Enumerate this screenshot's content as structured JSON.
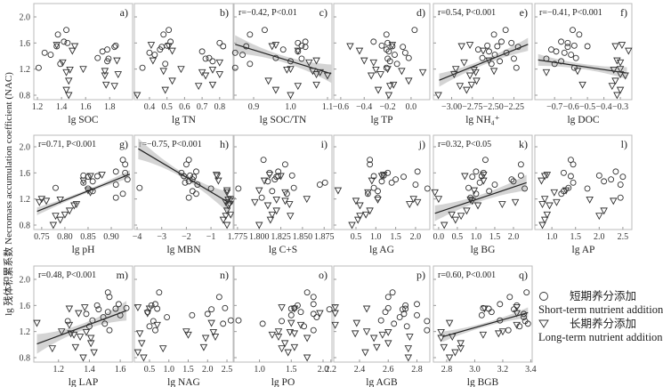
{
  "chart_data": {
    "type": "scatter",
    "ylabel": "lg 残体积累系数 Necromass accumulation coefficient (NAC)",
    "yticks": [
      "2.0",
      "1.6",
      "1.2",
      "0.8"
    ],
    "ylim": [
      0.73,
      2.2
    ],
    "legend": {
      "placement": "right of bottom row",
      "short_cn": "短期养分添加",
      "short_en": "Short-term nutrient addition",
      "long_cn": "长期养分添加",
      "long_en": "Long-term nutrient addition"
    },
    "series_y": {
      "short": [
        1.8,
        1.73,
        1.62,
        1.6,
        1.56,
        1.55,
        1.54,
        1.5,
        1.47,
        1.45,
        1.42,
        1.37,
        1.36,
        1.32,
        1.28,
        1.22
      ],
      "long": [
        1.57,
        1.55,
        1.48,
        1.33,
        1.3,
        1.2,
        1.19,
        1.17,
        1.15,
        1.12,
        1.1,
        1.02,
        0.96,
        0.94,
        0.88,
        0.8
      ]
    },
    "panels": [
      {
        "letter": "a)",
        "xlabel": "lg SOC",
        "xlim": [
          1.17,
          1.99
        ],
        "xticks": [
          "1.2",
          "1.4",
          "1.6",
          "1.8"
        ],
        "short_x": [
          1.44,
          1.37,
          1.42,
          1.45,
          1.85,
          1.36,
          1.84,
          1.78,
          1.74,
          1.26,
          1.31,
          1.7,
          1.79,
          1.78,
          1.39,
          1.21
        ],
        "long_x": [
          1.36,
          1.51,
          1.49,
          1.86,
          1.41,
          1.58,
          1.47,
          1.76,
          1.44,
          1.87,
          1.76,
          1.46,
          1.77,
          1.84,
          1.44,
          1.46
        ]
      },
      {
        "letter": "b)",
        "xlabel": "lg TN",
        "xlim": [
          0.314,
          0.877
        ],
        "xticks": [
          "0.4",
          "0.5",
          "0.6",
          "0.7",
          "0.8"
        ],
        "short_x": [
          0.51,
          0.48,
          0.52,
          0.8,
          0.5,
          0.82,
          0.47,
          0.46,
          0.7,
          0.4,
          0.43,
          0.74,
          0.72,
          0.76,
          0.49,
          0.36
        ],
        "long_x": [
          0.41,
          0.51,
          0.53,
          0.42,
          0.8,
          0.58,
          0.76,
          0.48,
          0.7,
          0.8,
          0.72,
          0.53,
          0.76,
          0.68,
          0.49,
          0.33
        ]
      },
      {
        "letter": "c)",
        "xlabel": "lg SOC/TN",
        "xlim": [
          0.847,
          1.112
        ],
        "xticks": [
          "0.9",
          "1.0",
          "1.1"
        ],
        "stat": "r=−0.42, P<0.01",
        "fit": {
          "x": [
            0.85,
            1.11
          ],
          "y": [
            1.58,
            1.13
          ],
          "ci": [
            0.14,
            0.05
          ]
        },
        "short_x": [
          0.93,
          0.89,
          1.04,
          1.02,
          1.03,
          0.88,
          1.04,
          0.98,
          1.02,
          0.85,
          0.87,
          0.96,
          1.03,
          1.0,
          0.89,
          0.85
        ],
        "long_x": [
          0.96,
          0.95,
          1.02,
          1.07,
          1.05,
          1.0,
          0.99,
          1.06,
          1.08,
          1.07,
          1.1,
          0.94,
          1.07,
          1.02,
          0.96,
          1.0
        ]
      },
      {
        "letter": "d)",
        "xlabel": "lg TP",
        "xlim": [
          -0.66,
          0.16
        ],
        "xticks": [
          "−0.6",
          "−0.4",
          "−0.2",
          "0.0"
        ],
        "short_x": [
          0.03,
          -0.21,
          -0.32,
          -0.2,
          -0.25,
          -0.16,
          -0.07,
          -0.21,
          -0.19,
          -0.05,
          -0.14,
          -0.02,
          -0.2,
          -0.18,
          -0.12,
          -0.21
        ],
        "long_x": [
          -0.16,
          -0.52,
          -0.44,
          -0.4,
          -0.32,
          -0.2,
          -0.3,
          -0.08,
          0.1,
          -0.26,
          -0.34,
          -0.02,
          -0.15,
          -0.18,
          -0.28,
          -0.19
        ]
      },
      {
        "letter": "e)",
        "xlabel": "lg NH₄⁺",
        "xlim": [
          -3.22,
          -2.03
        ],
        "xticks": [
          "−3.00",
          "−2.75",
          "−2.50",
          "−2.25"
        ],
        "stat": "r=0.54, P<0.001",
        "fit": {
          "x": [
            -3.15,
            -2.08
          ],
          "y": [
            1.03,
            1.58
          ],
          "ci": [
            0.1,
            0.04
          ]
        },
        "short_x": [
          -2.35,
          -2.49,
          -2.4,
          -2.28,
          -2.57,
          -2.45,
          -2.2,
          -2.68,
          -2.55,
          -2.34,
          -2.48,
          -2.63,
          -2.25,
          -2.42,
          -2.52,
          -2.22
        ],
        "long_x": [
          -2.78,
          -2.88,
          -2.62,
          -2.55,
          -2.85,
          -2.95,
          -2.73,
          -2.49,
          -2.71,
          -2.97,
          -2.78,
          -2.7,
          -2.76,
          -2.9,
          -2.82,
          -3.16
        ]
      },
      {
        "letter": "f)",
        "xlabel": "lg DOC",
        "xlim": [
          -0.82,
          -0.23
        ],
        "xticks": [
          "−0.7",
          "−0.6",
          "−0.5",
          "−0.4",
          "−0.3"
        ],
        "stat": "r=−0.41, P<0.001",
        "fit": {
          "x": [
            -0.8,
            -0.26
          ],
          "y": [
            1.34,
            1.14
          ],
          "ci": [
            0.09,
            0.04
          ]
        },
        "short_x": [
          -0.59,
          -0.55,
          -0.66,
          -0.62,
          -0.58,
          -0.5,
          -0.62,
          -0.72,
          -0.69,
          -0.64,
          -0.6,
          -0.57,
          -0.75,
          -0.66,
          -0.7,
          -0.58
        ],
        "long_x": [
          -0.29,
          -0.33,
          -0.25,
          -0.32,
          -0.3,
          -0.3,
          -0.34,
          -0.56,
          -0.75,
          -0.3,
          -0.27,
          -0.33,
          -0.53,
          -0.35,
          -0.3,
          -0.32
        ]
      },
      {
        "letter": "g)",
        "xlabel": "lg pH",
        "xlim": [
          0.733,
          0.946
        ],
        "xticks": [
          "0.75",
          "0.80",
          "0.85",
          "0.90"
        ],
        "stat": "r=0.71, P<0.001",
        "fit": {
          "x": [
            0.74,
            0.94
          ],
          "y": [
            1.01,
            1.58
          ],
          "ci": [
            0.06,
            0.025
          ]
        },
        "short_x": [
          0.925,
          0.93,
          0.91,
          0.93,
          0.84,
          0.87,
          0.85,
          0.935,
          0.86,
          0.84,
          0.91,
          0.78,
          0.85,
          0.86,
          0.925,
          0.91
        ],
        "long_x": [
          0.88,
          0.855,
          0.84,
          0.85,
          0.855,
          0.75,
          0.79,
          0.76,
          0.745,
          0.825,
          0.82,
          0.81,
          0.8,
          0.78,
          0.79,
          0.775
        ]
      },
      {
        "letter": "h)",
        "xlabel": "lg MBN",
        "xlim": [
          -4.11,
          -0.1
        ],
        "xticks": [
          "−4",
          "−3",
          "−2",
          "−1"
        ],
        "stat": "r=−0.75, P<0.001",
        "fit": {
          "x": [
            -3.95,
            -0.3
          ],
          "y": [
            1.97,
            1.15
          ],
          "ci": [
            0.16,
            0.04
          ]
        },
        "short_x": [
          -1.9,
          -2.0,
          -1.6,
          -2.2,
          -1.85,
          -2.1,
          -1.7,
          -1.75,
          -1.9,
          -2.05,
          -1.55,
          -3.9,
          -1.0,
          -1.75,
          -1.6,
          -1.9
        ],
        "long_x": [
          -0.78,
          -0.75,
          -0.7,
          -0.35,
          -0.35,
          -0.2,
          -0.3,
          -0.15,
          -0.4,
          -0.25,
          -0.3,
          -0.35,
          -0.2,
          -0.4,
          -0.5,
          -0.35
        ]
      },
      {
        "letter": "i)",
        "xlabel": "lg C+S",
        "xlim": [
          1.771,
          1.884
        ],
        "xticks": [
          "1.775",
          "1.800",
          "1.825",
          "1.850",
          "1.875"
        ],
        "short_x": [
          1.805,
          1.83,
          1.822,
          1.812,
          1.838,
          1.822,
          1.82,
          1.818,
          1.81,
          1.876,
          1.87,
          1.84,
          1.776,
          1.815,
          1.832,
          1.803
        ],
        "long_x": [
          1.812,
          1.825,
          1.806,
          1.8,
          1.83,
          1.855,
          1.82,
          1.83,
          1.795,
          1.835,
          1.81,
          1.82,
          1.815,
          1.836,
          1.813,
          1.8
        ]
      },
      {
        "letter": "j)",
        "xlabel": "lg AG",
        "xlim": [
          -0.06,
          2.36
        ],
        "xticks": [
          "0.5",
          "1.0",
          "1.5",
          "2.0"
        ],
        "short_x": [
          0.85,
          0.85,
          2.05,
          1.3,
          1.2,
          0.95,
          1.7,
          1.5,
          1.15,
          1.4,
          2.0,
          0.95,
          2.3,
          1.05,
          0.8,
          1.05
        ],
        "long_x": [
          1.2,
          1.15,
          0.9,
          0.05,
          0.8,
          1.95,
          1.05,
          0.5,
          2.05,
          1.85,
          0.6,
          0.85,
          0.75,
          0.6,
          0.55,
          0.4
        ]
      },
      {
        "letter": "k)",
        "xlabel": "lg BG",
        "xlim": [
          -0.14,
          2.5
        ],
        "xticks": [
          "0.0",
          "0.5",
          "1.0",
          "1.5",
          "2.0"
        ],
        "stat": "r=0.32, P<0.05",
        "fit": {
          "x": [
            -0.1,
            2.35
          ],
          "y": [
            0.98,
            1.45
          ],
          "ci": [
            0.12,
            0.05
          ]
        },
        "short_x": [
          1.25,
          2.2,
          1.0,
          1.2,
          2.2,
          1.15,
          0.9,
          1.95,
          2.0,
          1.1,
          1.5,
          0.8,
          2.3,
          1.35,
          1.0,
          0.85
        ],
        "long_x": [
          1.2,
          0.7,
          1.2,
          0.95,
          -0.1,
          0.0,
          0.85,
          0.9,
          2.05,
          1.7,
          1.05,
          0.75,
          0.35,
          0.6,
          0.45,
          0.15
        ]
      },
      {
        "letter": "l)",
        "xlabel": "lg AP",
        "xlim": [
          0.64,
          2.69
        ],
        "xticks": [
          "1.0",
          "1.5",
          "2.0",
          "2.5"
        ],
        "short_x": [
          1.4,
          1.45,
          2.35,
          1.25,
          2.0,
          1.4,
          2.5,
          2.25,
          2.1,
          1.45,
          2.45,
          1.35,
          1.75,
          1.25,
          1.2,
          2.45
        ],
        "long_x": [
          0.9,
          0.85,
          0.78,
          1.3,
          1.05,
          0.85,
          1.8,
          2.3,
          1.1,
          0.8,
          0.95,
          2.1,
          0.9,
          2.0,
          0.85,
          0.8
        ]
      },
      {
        "letter": "m)",
        "xlabel": "lg LAP",
        "xlim": [
          1.04,
          1.68
        ],
        "xticks": [
          "1.2",
          "1.4",
          "1.6"
        ],
        "stat": "r=0.48, P<0.001",
        "fit": {
          "x": [
            1.06,
            1.64
          ],
          "y": [
            1.01,
            1.52
          ],
          "ci": [
            0.15,
            0.05
          ]
        },
        "short_x": [
          1.52,
          1.53,
          1.59,
          1.45,
          1.64,
          1.57,
          1.46,
          1.52,
          1.38,
          1.6,
          1.49,
          1.42,
          1.26,
          1.5,
          1.4,
          1.53
        ],
        "long_x": [
          1.37,
          1.27,
          1.33,
          1.06,
          1.27,
          1.22,
          1.38,
          1.28,
          1.3,
          1.34,
          1.41,
          1.41,
          1.31,
          1.16,
          1.43,
          1.36
        ]
      },
      {
        "letter": "n)",
        "xlabel": "lg NAG",
        "xlim": [
          0.11,
          2.66
        ],
        "xticks": [
          "0.5",
          "1.0",
          "1.5",
          "2.0",
          "2.5"
        ],
        "short_x": [
          0.75,
          2.3,
          0.65,
          0.55,
          2.45,
          0.7,
          2.1,
          0.45,
          2.0,
          1.6,
          0.95,
          2.6,
          0.6,
          2.4,
          0.5,
          0.65
        ],
        "long_x": [
          0.2,
          0.5,
          0.45,
          2.1,
          0.7,
          1.45,
          2.15,
          0.25,
          1.5,
          2.2,
          1.95,
          0.3,
          1.9,
          0.85,
          0.2,
          0.35
        ]
      },
      {
        "letter": "o)",
        "xlabel": "lg PO",
        "xlim": [
          0.6,
          2.14
        ],
        "xticks": [
          "1.0",
          "1.5",
          "2.0"
        ],
        "short_x": [
          1.75,
          1.85,
          1.85,
          1.6,
          1.55,
          1.5,
          2.1,
          1.65,
          1.85,
          1.5,
          1.9,
          0.67,
          1.35,
          1.05,
          1.7,
          1.85
        ],
        "long_x": [
          1.35,
          1.55,
          1.95,
          1.5,
          1.65,
          1.3,
          1.48,
          1.55,
          1.2,
          1.3,
          1.75,
          1.4,
          1.55,
          1.35,
          1.45,
          1.75
        ]
      },
      {
        "letter": "p)",
        "xlabel": "lg AGB",
        "xlim": [
          2.22,
          2.89
        ],
        "xticks": [
          "2.2",
          "2.4",
          "2.6",
          "2.8"
        ],
        "short_x": [
          2.63,
          2.6,
          2.8,
          2.72,
          2.6,
          2.72,
          2.7,
          2.58,
          2.71,
          2.8,
          2.68,
          2.55,
          2.87,
          2.64,
          2.73,
          2.87
        ],
        "long_x": [
          2.23,
          2.45,
          2.23,
          2.38,
          2.23,
          2.45,
          2.6,
          2.37,
          2.56,
          2.75,
          2.5,
          2.6,
          2.52,
          2.74,
          2.44,
          2.74
        ]
      },
      {
        "letter": "q)",
        "xlabel": "lg BGB",
        "xlim": [
          2.705,
          3.41
        ],
        "xticks": [
          "2.8",
          "3.0",
          "3.2",
          "3.4"
        ],
        "stat": "r=0.60, P<0.001",
        "fit": {
          "x": [
            2.77,
            3.38
          ],
          "y": [
            1.12,
            1.49
          ],
          "ci": [
            0.08,
            0.03
          ]
        },
        "short_x": [
          3.37,
          3.25,
          3.18,
          3.3,
          3.06,
          3.1,
          3.28,
          3.12,
          3.35,
          3.05,
          3.35,
          3.18,
          3.36,
          3.38,
          3.32,
          3.24
        ],
        "long_x": [
          3.3,
          3.07,
          3.3,
          2.82,
          3.3,
          3.2,
          2.76,
          3.17,
          3.06,
          2.84,
          2.76,
          2.9,
          2.78,
          2.9,
          2.86,
          2.82
        ]
      }
    ]
  }
}
